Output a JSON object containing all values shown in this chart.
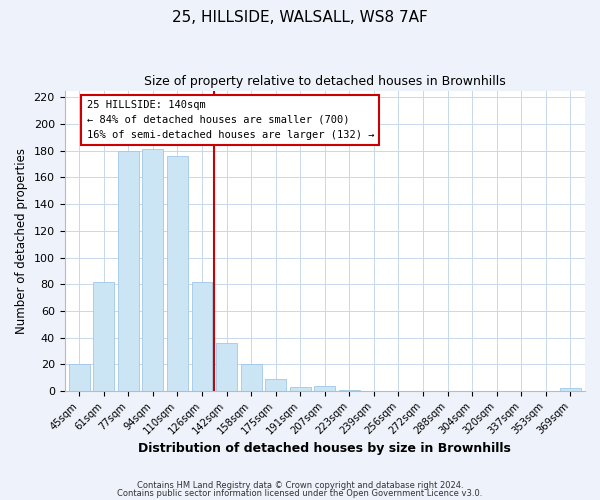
{
  "title1": "25, HILLSIDE, WALSALL, WS8 7AF",
  "title2": "Size of property relative to detached houses in Brownhills",
  "xlabel": "Distribution of detached houses by size in Brownhills",
  "ylabel": "Number of detached properties",
  "bar_labels": [
    "45sqm",
    "61sqm",
    "77sqm",
    "94sqm",
    "110sqm",
    "126sqm",
    "142sqm",
    "158sqm",
    "175sqm",
    "191sqm",
    "207sqm",
    "223sqm",
    "239sqm",
    "256sqm",
    "272sqm",
    "288sqm",
    "304sqm",
    "320sqm",
    "337sqm",
    "353sqm",
    "369sqm"
  ],
  "bar_heights": [
    20,
    82,
    180,
    181,
    176,
    82,
    36,
    20,
    9,
    3,
    4,
    1,
    0,
    0,
    0,
    0,
    0,
    0,
    0,
    0,
    2
  ],
  "bar_color": "#cce5f5",
  "bar_edge_color": "#a0c8e8",
  "marker_index": 6,
  "marker_color": "#cc0000",
  "annotation_title": "25 HILLSIDE: 140sqm",
  "annotation_line1": "← 84% of detached houses are smaller (700)",
  "annotation_line2": "16% of semi-detached houses are larger (132) →",
  "ylim": [
    0,
    225
  ],
  "yticks": [
    0,
    20,
    40,
    60,
    80,
    100,
    120,
    140,
    160,
    180,
    200,
    220
  ],
  "footer1": "Contains HM Land Registry data © Crown copyright and database right 2024.",
  "footer2": "Contains public sector information licensed under the Open Government Licence v3.0.",
  "bg_color": "#eef2fa",
  "plot_bg_color": "#ffffff",
  "grid_color": "#c8d8ec"
}
